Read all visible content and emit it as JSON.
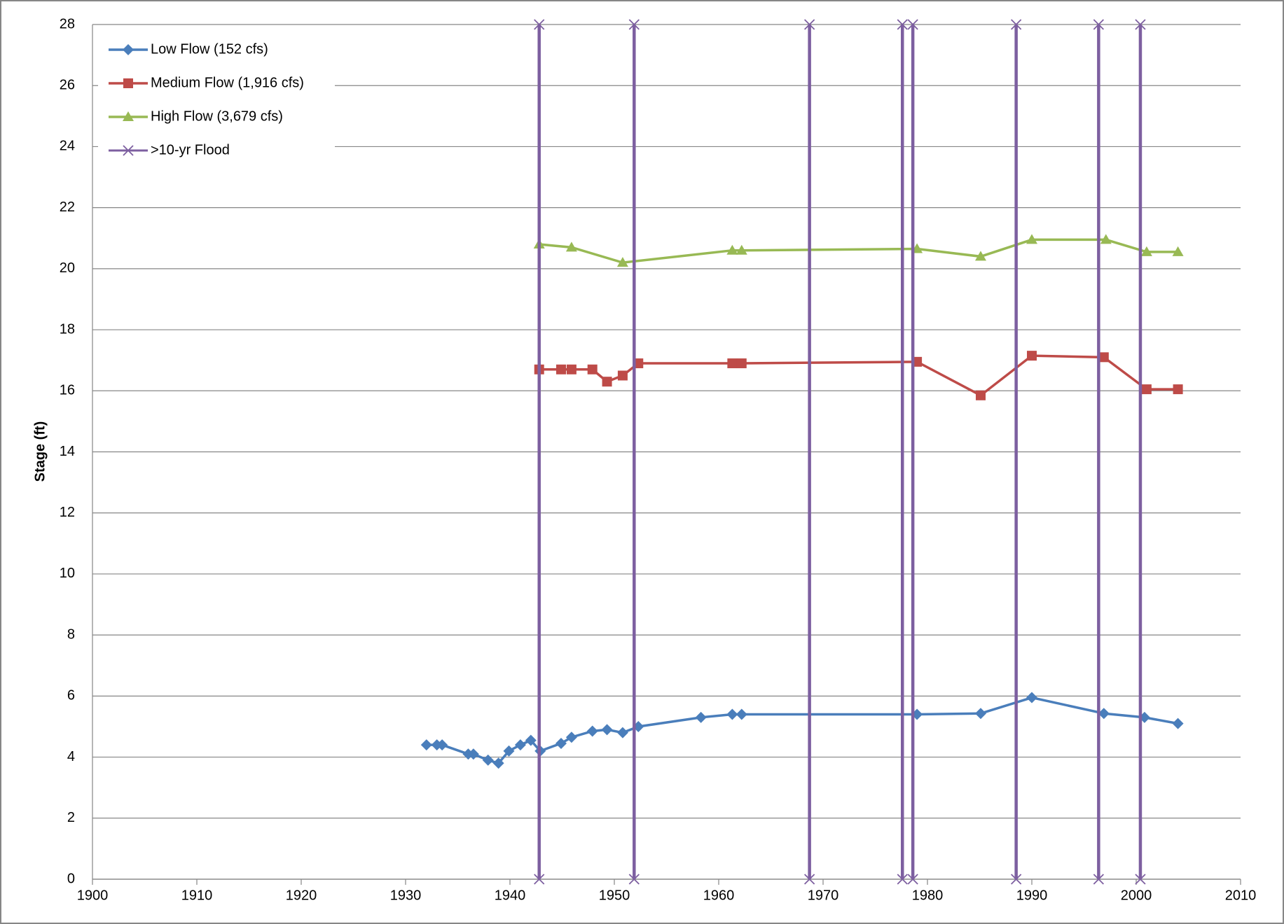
{
  "chart_data": {
    "type": "line",
    "y_label": "Stage (ft)",
    "xlim": [
      1900,
      2010
    ],
    "xticks": [
      1900,
      1910,
      1920,
      1930,
      1940,
      1950,
      1960,
      1970,
      1980,
      1990,
      2000,
      2010
    ],
    "ylim": [
      0,
      28
    ],
    "yticks": [
      0,
      2,
      4,
      6,
      8,
      10,
      12,
      14,
      16,
      18,
      20,
      22,
      24,
      26,
      28
    ],
    "grid": true,
    "legend": "upper left",
    "series": [
      {
        "name": "Low Flow (152 cfs)",
        "color": "#4a7ebb",
        "marker": "diamond",
        "x": [
          1932.0,
          1933.0,
          1933.5,
          1936.0,
          1936.5,
          1937.9,
          1938.9,
          1939.9,
          1941.0,
          1942.0,
          1942.9,
          1944.9,
          1945.9,
          1947.9,
          1949.3,
          1950.8,
          1952.3,
          1958.3,
          1961.3,
          1962.2,
          1979.0,
          1985.1,
          1990.0,
          1996.9,
          2000.8,
          2004.0
        ],
        "values": [
          4.4,
          4.4,
          4.4,
          4.1,
          4.1,
          3.9,
          3.8,
          4.2,
          4.4,
          4.55,
          4.2,
          4.45,
          4.65,
          4.85,
          4.9,
          4.8,
          5.0,
          5.3,
          5.4,
          5.4,
          5.4,
          5.43,
          5.95,
          5.43,
          5.3,
          5.1
        ]
      },
      {
        "name": "Medium Flow (1,916 cfs)",
        "color": "#be4b48",
        "marker": "square",
        "x": [
          1942.8,
          1944.9,
          1945.9,
          1947.9,
          1949.3,
          1950.8,
          1952.3,
          1961.3,
          1962.2,
          1979.0,
          1985.1,
          1990.0,
          1996.9,
          2001.0,
          2004.0
        ],
        "values": [
          16.7,
          16.7,
          16.7,
          16.7,
          16.3,
          16.5,
          16.9,
          16.9,
          16.9,
          16.95,
          15.85,
          17.15,
          17.1,
          16.05,
          16.05
        ]
      },
      {
        "name": "High Flow (3,679 cfs)",
        "color": "#98b954",
        "marker": "triangle",
        "x": [
          1942.8,
          1945.9,
          1950.8,
          1961.3,
          1962.2,
          1979.0,
          1985.1,
          1990.0,
          1997.1,
          2001.0,
          2004.0
        ],
        "values": [
          20.8,
          20.7,
          20.2,
          20.6,
          20.6,
          20.65,
          20.4,
          20.95,
          20.95,
          20.55,
          20.55
        ]
      },
      {
        "name": ">10-yr Flood",
        "color": "#7d5fa0",
        "marker": "x",
        "x": [
          1942.8,
          1942.8,
          null,
          1951.9,
          1951.9,
          null,
          1968.7,
          1968.7,
          null,
          1977.6,
          1977.6,
          null,
          1978.6,
          1978.6,
          null,
          1988.5,
          1988.5,
          null,
          1996.4,
          1996.4,
          null,
          2000.4,
          2000.4
        ],
        "values": [
          0,
          28,
          null,
          0,
          28,
          null,
          0,
          28,
          null,
          0,
          28,
          null,
          0,
          28,
          null,
          0,
          28,
          null,
          0,
          28,
          null,
          0,
          28
        ]
      }
    ]
  }
}
